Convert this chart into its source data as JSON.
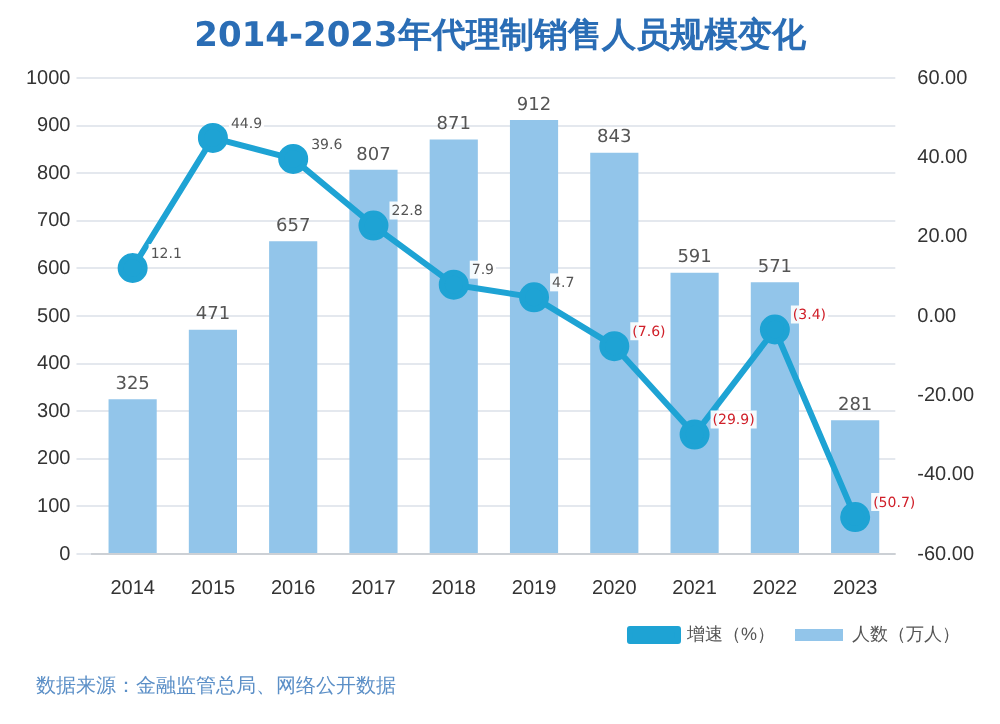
{
  "chart_data": {
    "type": "bar",
    "title": "2014-2023年代理制销售人员规模变化",
    "categories": [
      "2014",
      "2015",
      "2016",
      "2017",
      "2018",
      "2019",
      "2020",
      "2021",
      "2022",
      "2023"
    ],
    "series": [
      {
        "name": "人数（万人）",
        "color": "#92c5ea",
        "values": [
          325,
          471,
          657,
          807,
          871,
          912,
          843,
          591,
          571,
          281
        ],
        "value_labels": [
          "325",
          "471",
          "657",
          "807",
          "871",
          "912",
          "843",
          "591",
          "571",
          "281"
        ]
      },
      {
        "name": "增速（%）",
        "type": "line",
        "axis": "y2",
        "color": "#1ea3d4",
        "values": [
          12.1,
          44.9,
          39.6,
          22.8,
          7.9,
          4.7,
          -7.6,
          -29.9,
          -3.4,
          -50.7
        ],
        "value_labels": [
          "12.1",
          "44.9",
          "39.6",
          "22.8",
          "7.9",
          "4.7",
          "(7.6)",
          "(29.9)",
          "(3.4)",
          "(50.7)"
        ]
      }
    ],
    "ylim": [
      0,
      1000
    ],
    "yticks": [
      0,
      100,
      200,
      300,
      400,
      500,
      600,
      700,
      800,
      900,
      1000
    ],
    "y2lim": [
      -60,
      60
    ],
    "y2ticks": [
      {
        "value": -60,
        "label": "-60.00"
      },
      {
        "value": -40,
        "label": "-40.00"
      },
      {
        "value": -20,
        "label": "-20.00"
      },
      {
        "value": 0,
        "label": "0.00"
      },
      {
        "value": 20,
        "label": "20.00"
      },
      {
        "value": 40,
        "label": "40.00"
      },
      {
        "value": 60,
        "label": "60.00"
      }
    ],
    "grid": "y",
    "legend": "bottom",
    "marker": "circle",
    "line_style": "solid",
    "annotations": [
      "数据来源：金融监管总局、网络公开数据"
    ]
  }
}
